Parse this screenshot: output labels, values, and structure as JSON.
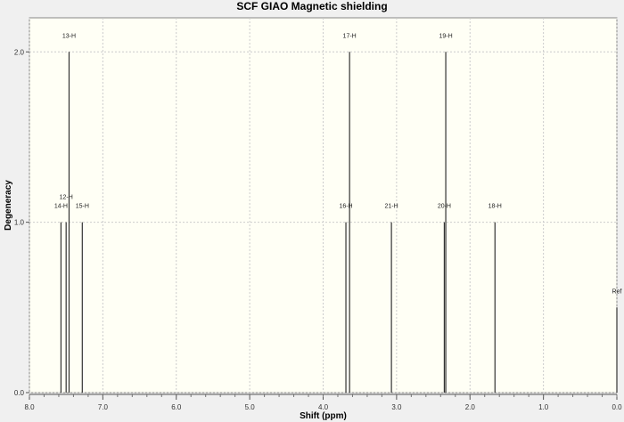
{
  "chart_data": {
    "type": "bar",
    "title": "SCF GIAO Magnetic shielding",
    "xlabel": "Shift (ppm)",
    "ylabel": "Degeneracy",
    "xlim": [
      8.0,
      0.0
    ],
    "ylim": [
      0.0,
      2.2
    ],
    "x_reversed": true,
    "grid": true,
    "x_ticks": [
      "8.0",
      "7.0",
      "6.0",
      "5.0",
      "4.0",
      "3.0",
      "2.0",
      "1.0",
      "0.0"
    ],
    "y_ticks": [
      "0.0",
      "1.0",
      "2.0"
    ],
    "peaks": [
      {
        "label": "14-H",
        "x": 7.57,
        "y": 1
      },
      {
        "label": "12-H",
        "x": 7.5,
        "y": 1
      },
      {
        "label": "13-H",
        "x": 7.46,
        "y": 2
      },
      {
        "label": "15-H",
        "x": 7.28,
        "y": 1
      },
      {
        "label": "16-H",
        "x": 3.69,
        "y": 1
      },
      {
        "label": "17-H",
        "x": 3.64,
        "y": 2
      },
      {
        "label": "21-H",
        "x": 3.07,
        "y": 1
      },
      {
        "label": "20-H",
        "x": 2.35,
        "y": 1
      },
      {
        "label": "19-H",
        "x": 2.33,
        "y": 2
      },
      {
        "label": "18-H",
        "x": 1.66,
        "y": 1
      },
      {
        "label": "Ref",
        "x": 0.0,
        "y": 0.5
      }
    ]
  }
}
